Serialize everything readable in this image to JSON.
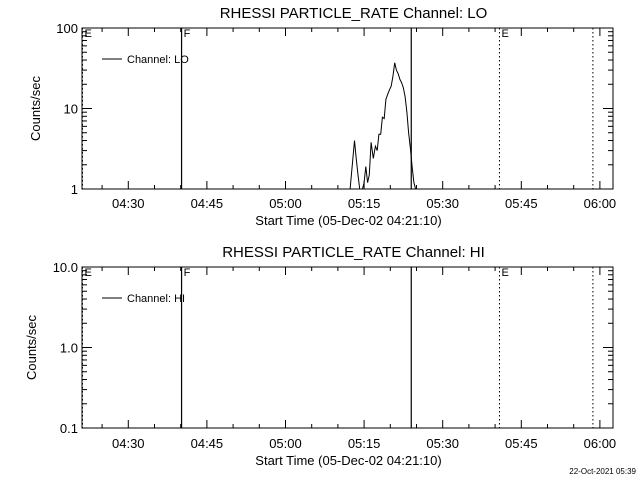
{
  "footer": {
    "timestamp": "22-Oct-2021 05:39"
  },
  "chart_data": [
    {
      "type": "line",
      "title": "RHESSI PARTICLE_RATE Channel: LO",
      "xlabel": "Start Time (05-Dec-02 04:21:10)",
      "ylabel": "Counts/sec",
      "yscale": "log",
      "ylim": [
        1,
        100
      ],
      "xlim": [
        "04:21:10",
        "06:02:30"
      ],
      "yticks": [
        "1",
        "10",
        "100"
      ],
      "xticks": [
        "04:30",
        "04:45",
        "05:00",
        "05:15",
        "05:30",
        "05:45",
        "06:00"
      ],
      "legend": "top-left",
      "grid": false,
      "series": [
        {
          "name": "Channel: LO",
          "x": [
            "05:12:20",
            "05:12:45",
            "05:13:10",
            "05:13:30",
            "05:13:50",
            "05:14:10",
            "05:14:30",
            "05:15:00",
            "05:15:20",
            "05:15:40",
            "05:16:00",
            "05:16:20",
            "05:16:45",
            "05:17:10",
            "05:17:30",
            "05:17:50",
            "05:18:10",
            "05:18:30",
            "05:18:50",
            "05:19:10",
            "05:19:30",
            "05:19:50",
            "05:20:10",
            "05:20:30",
            "05:20:50",
            "05:21:10",
            "05:21:30",
            "05:21:50",
            "05:22:10",
            "05:22:30",
            "05:22:50",
            "05:23:10",
            "05:23:30",
            "05:23:50",
            "05:24:10",
            "05:24:30",
            "05:24:50",
            "05:25:10"
          ],
          "values": [
            1.0,
            2.0,
            4.0,
            2.4,
            1.5,
            1.0,
            0.9,
            1.2,
            1.9,
            1.2,
            1.5,
            3.8,
            2.4,
            3.4,
            3.0,
            4.8,
            4.8,
            7.8,
            7.5,
            13,
            15,
            17,
            19,
            25,
            37,
            30,
            27,
            23,
            21,
            18,
            14,
            9,
            5,
            3.2,
            1.9,
            1.2,
            1.0,
            0.9
          ]
        }
      ],
      "markers": [
        {
          "label": "E",
          "time": "04:21:10",
          "style": "dotted"
        },
        {
          "label": "F",
          "time": "04:40:10",
          "style": "solid"
        },
        {
          "label": "",
          "time": "05:24:00",
          "style": "solid"
        },
        {
          "label": "E",
          "time": "05:40:50",
          "style": "dotted"
        },
        {
          "label": "",
          "time": "05:58:40",
          "style": "dotted"
        }
      ]
    },
    {
      "type": "line",
      "title": "RHESSI PARTICLE_RATE Channel: HI",
      "xlabel": "Start Time (05-Dec-02 04:21:10)",
      "ylabel": "Counts/sec",
      "yscale": "log",
      "ylim": [
        0.1,
        10
      ],
      "xlim": [
        "04:21:10",
        "06:02:30"
      ],
      "yticks": [
        "0.1",
        "1.0",
        "10.0"
      ],
      "xticks": [
        "04:30",
        "04:45",
        "05:00",
        "05:15",
        "05:30",
        "05:45",
        "06:00"
      ],
      "legend": "top-left",
      "grid": false,
      "series": [
        {
          "name": "Channel: HI",
          "x": [],
          "values": []
        }
      ],
      "markers": [
        {
          "label": "E",
          "time": "04:21:10",
          "style": "dotted"
        },
        {
          "label": "F",
          "time": "04:40:10",
          "style": "solid"
        },
        {
          "label": "",
          "time": "05:24:00",
          "style": "solid"
        },
        {
          "label": "E",
          "time": "05:40:50",
          "style": "dotted"
        },
        {
          "label": "",
          "time": "05:58:40",
          "style": "dotted"
        }
      ]
    }
  ]
}
